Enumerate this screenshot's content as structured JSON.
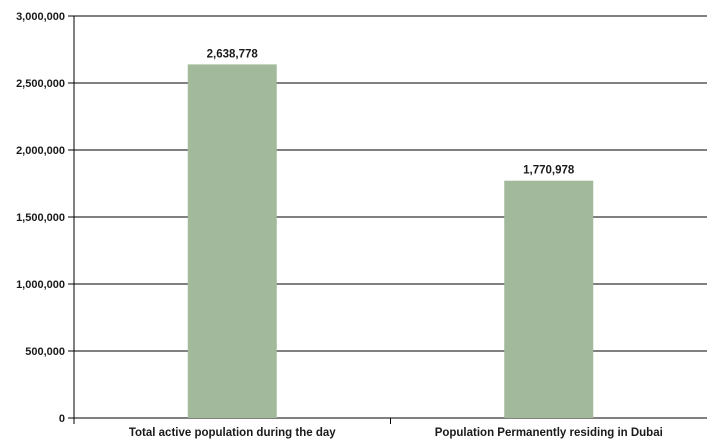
{
  "chart_data": {
    "type": "bar",
    "title": "",
    "xlabel": "",
    "ylabel": "",
    "categories": [
      "Total active population during the day",
      "Population Permanently residing in Dubai"
    ],
    "values": [
      2638778,
      1770978
    ],
    "value_labels": [
      "2,638,778",
      "1,770,978"
    ],
    "ylim": [
      0,
      3000000
    ],
    "yticks": [
      0,
      500000,
      1000000,
      1500000,
      2000000,
      2500000,
      3000000
    ],
    "ytick_labels": [
      "0",
      "500,000",
      "1,000,000",
      "1,500,000",
      "2,000,000",
      "2,500,000",
      "3,000,000"
    ],
    "grid": true,
    "legend": "none",
    "bar_color": "#a3b99c",
    "grid_color": "#000000"
  }
}
